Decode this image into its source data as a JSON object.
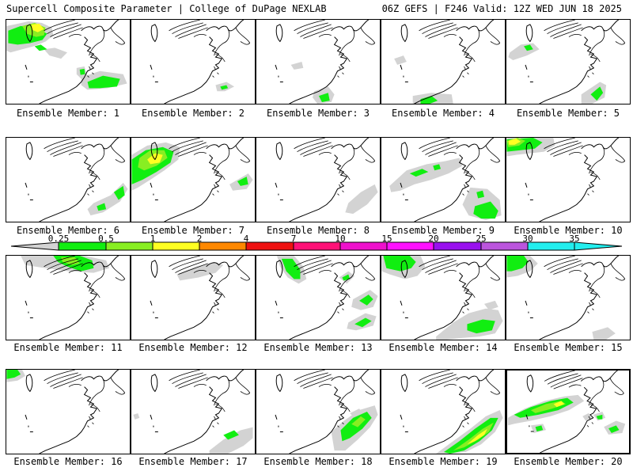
{
  "header": {
    "title_left": "Supercell Composite Parameter | College of DuPage NEXLAB",
    "title_right": "06Z GEFS | F246 Valid: 12Z WED JUN 18 2025"
  },
  "colors": {
    "c_0_25": "#d3d3d3",
    "c_0_5": "#11ee11",
    "c_1": "#88ee22",
    "c_2": "#ffff22",
    "c_4": "#ff8800",
    "c_7": "#ee1111",
    "c_10": "#ff1177",
    "c_15": "#ee11cc",
    "c_20": "#ff11ff",
    "c_25": "#9911ee",
    "c_30": "#bb55dd",
    "c_35": "#22eeee"
  },
  "legend": {
    "labels": [
      "0.25",
      "0.5",
      "1",
      "2",
      "4",
      "7",
      "10",
      "15",
      "20",
      "25",
      "30",
      "35"
    ]
  },
  "panels": [
    {
      "label": "Ensemble Member: 1"
    },
    {
      "label": "Ensemble Member: 2"
    },
    {
      "label": "Ensemble Member: 3"
    },
    {
      "label": "Ensemble Member: 4"
    },
    {
      "label": "Ensemble Member: 5"
    },
    {
      "label": "Ensemble Member: 6"
    },
    {
      "label": "Ensemble Member: 7"
    },
    {
      "label": "Ensemble Member: 8"
    },
    {
      "label": "Ensemble Member: 9"
    },
    {
      "label": "Ensemble Member: 10"
    },
    {
      "label": "Ensemble Member: 11"
    },
    {
      "label": "Ensemble Member: 12"
    },
    {
      "label": "Ensemble Member: 13"
    },
    {
      "label": "Ensemble Member: 14"
    },
    {
      "label": "Ensemble Member: 15"
    },
    {
      "label": "Ensemble Member: 16"
    },
    {
      "label": "Ensemble Member: 17"
    },
    {
      "label": "Ensemble Member: 18"
    },
    {
      "label": "Ensemble Member: 19"
    },
    {
      "label": "Ensemble Member: 20",
      "selected": true
    }
  ]
}
